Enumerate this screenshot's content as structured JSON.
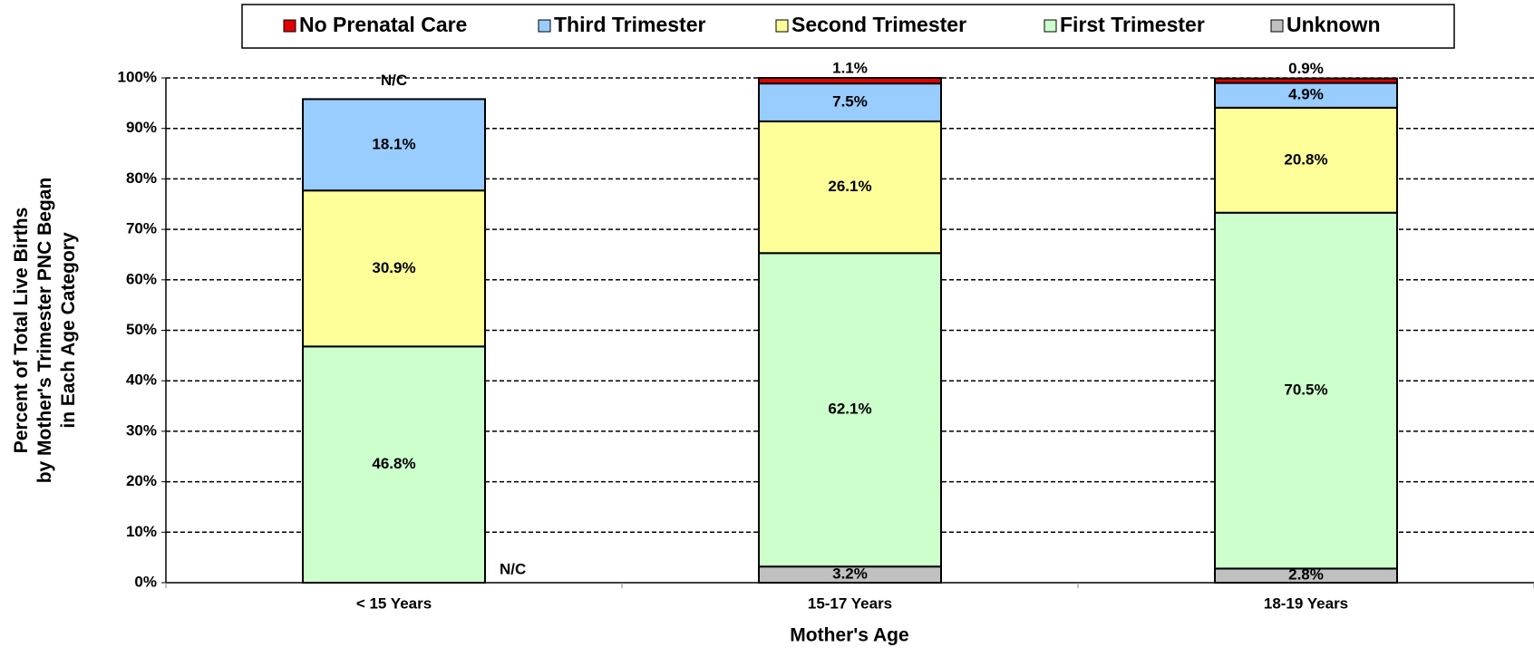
{
  "chart_data": {
    "type": "stacked_bar",
    "categories": [
      "< 15 Years",
      "15-17 Years",
      "18-19 Years"
    ],
    "series": [
      {
        "name": "Unknown",
        "color": "#c0c0c0",
        "values": [
          null,
          3.2,
          2.8
        ],
        "value_labels": [
          "N/C",
          "3.2%",
          "2.8%"
        ]
      },
      {
        "name": "First Trimester",
        "color": "#ccffcc",
        "values": [
          46.8,
          62.1,
          70.5
        ],
        "value_labels": [
          "46.8%",
          "62.1%",
          "70.5%"
        ]
      },
      {
        "name": "Second Trimester",
        "color": "#ffff99",
        "values": [
          30.9,
          26.1,
          20.8
        ],
        "value_labels": [
          "30.9%",
          "26.1%",
          "20.8%"
        ]
      },
      {
        "name": "Third Trimester",
        "color": "#99ccff",
        "values": [
          18.1,
          7.5,
          4.9
        ],
        "value_labels": [
          "18.1%",
          "7.5%",
          "4.9%"
        ]
      },
      {
        "name": "No Prenatal Care",
        "color": "#e00000",
        "values": [
          null,
          1.1,
          0.9
        ],
        "value_labels": [
          "N/C",
          "1.1%",
          "0.9%"
        ]
      }
    ],
    "ylim": [
      0,
      100
    ],
    "yticks": [
      {
        "value": 0,
        "label": "0%"
      },
      {
        "value": 10,
        "label": "10%"
      },
      {
        "value": 20,
        "label": "20%"
      },
      {
        "value": 30,
        "label": "30%"
      },
      {
        "value": 40,
        "label": "40%"
      },
      {
        "value": 50,
        "label": "50%"
      },
      {
        "value": 60,
        "label": "60%"
      },
      {
        "value": 70,
        "label": "70%"
      },
      {
        "value": 80,
        "label": "80%"
      },
      {
        "value": 90,
        "label": "90%"
      },
      {
        "value": 100,
        "label": "100%"
      }
    ],
    "xlabel": "Mother's Age",
    "ylabel": [
      "Percent of Total Live Births",
      "by Mother's Trimester PNC Began",
      "in Each Age Category"
    ],
    "grid": true,
    "legend": "top"
  }
}
